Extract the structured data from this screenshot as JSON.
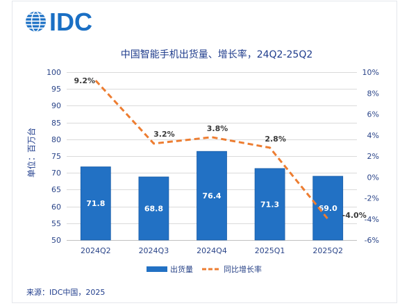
{
  "logo": {
    "text": "IDC",
    "icon": "idc-globe-icon",
    "color": "#1a6fc4"
  },
  "chart_data": {
    "type": "bar",
    "title": "中国智能手机出货量、增长率，24Q2-25Q2",
    "categories": [
      "2024Q2",
      "2024Q3",
      "2024Q4",
      "2025Q1",
      "2025Q2"
    ],
    "series": [
      {
        "name": "出货量",
        "type": "bar",
        "axis": "left",
        "values": [
          71.8,
          68.8,
          76.4,
          71.3,
          69.0
        ],
        "labels": [
          "71.8",
          "68.8",
          "76.4",
          "71.3",
          "69.0"
        ],
        "color": "#2271c4"
      },
      {
        "name": "同比增长率",
        "type": "line",
        "style": "dashed",
        "axis": "right",
        "values": [
          9.2,
          3.2,
          3.8,
          2.8,
          -4.0
        ],
        "labels": [
          "9.2%",
          "3.2%",
          "3.8%",
          "2.8%",
          "-4.0%"
        ],
        "color": "#ed7d31"
      }
    ],
    "ylabel": "单位：百万台",
    "ylim": [
      50,
      100
    ],
    "yticks": [
      "100",
      "95",
      "90",
      "85",
      "80",
      "75",
      "70",
      "65",
      "60",
      "55",
      "50"
    ],
    "y2lim": [
      -6,
      10
    ],
    "y2ticks": [
      "10%",
      "8%",
      "6%",
      "4%",
      "2%",
      "0%",
      "-2%",
      "-4%",
      "-6%"
    ],
    "grid": true,
    "legend": "bottom-center"
  },
  "source": "来源：IDC中国，2025"
}
